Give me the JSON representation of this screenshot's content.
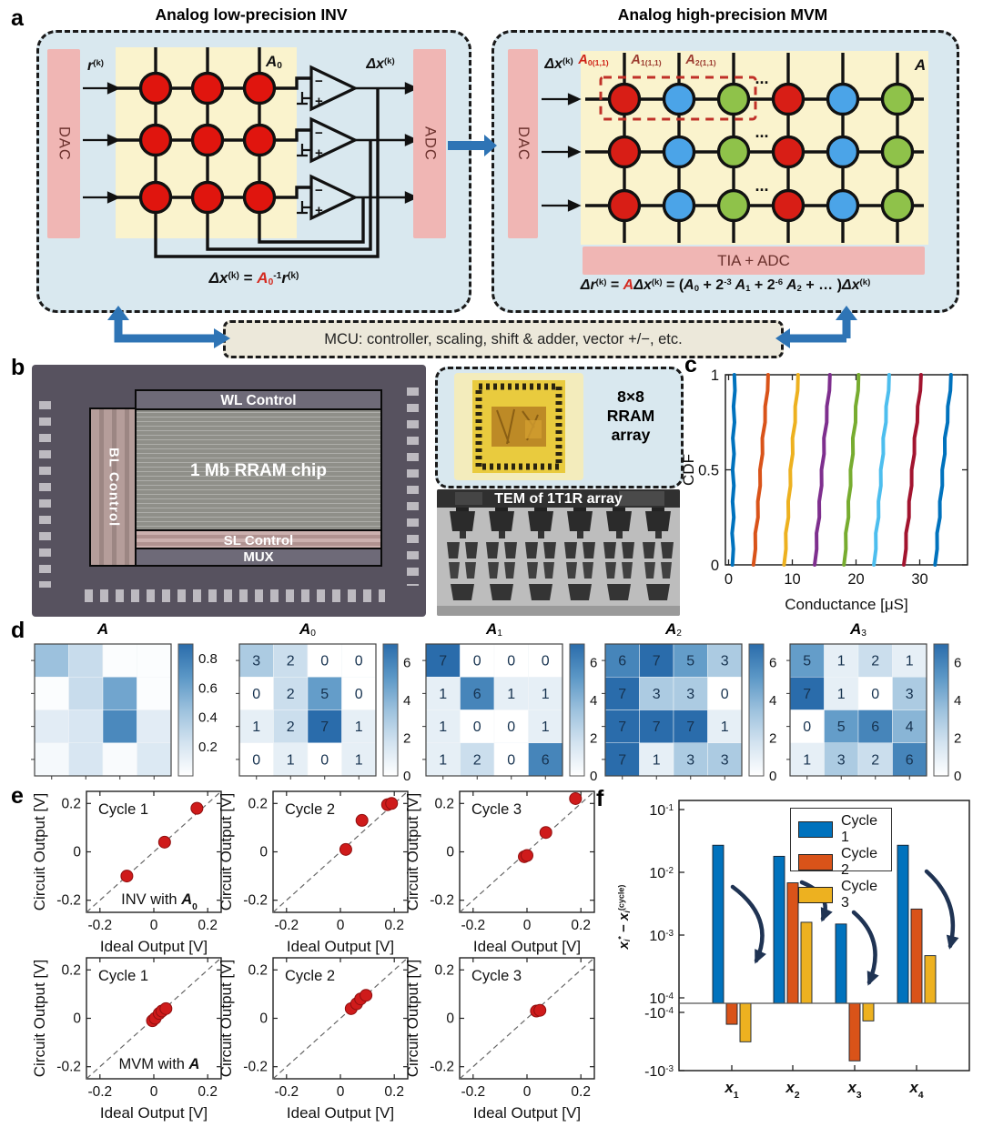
{
  "panel_labels": {
    "a": "a",
    "b": "b",
    "c": "c",
    "d": "d",
    "e": "e",
    "f": "f"
  },
  "colors": {
    "panel_bg": "#d9e8ef",
    "crossbar_bg": "#faf3cd",
    "pink_bar": "#f0b6b4",
    "maroon_text": "#6b312d",
    "mcu_bg": "#ece8da",
    "arrow_blue": "#2e74b5",
    "cell_red": "#e0150e",
    "cell_red2": "#d81e16",
    "cell_blue": "#4ba4e8",
    "cell_green": "#8fc24a",
    "red_accent": "#d42a20",
    "navy_arrow": "#1f3353"
  },
  "panel_a": {
    "left_title": "Analog low-precision INV",
    "right_title": "Analog high-precision MVM",
    "dac": "DAC",
    "adc": "ADC",
    "tia_adc": "TIA + ADC",
    "mcu": "MCU: controller, scaling, shift & adder, vector +/−, etc.",
    "op_minus": "−",
    "op_plus": "+",
    "dots": "...",
    "label_r": [
      {
        "t": "r",
        "s": "bi"
      },
      {
        "t": "(k)",
        "s": "sup"
      }
    ],
    "label_A0": [
      {
        "t": "A",
        "s": "bi"
      },
      {
        "t": "0",
        "s": "sub"
      }
    ],
    "label_dx_left": [
      {
        "t": "Δx",
        "s": "bi"
      },
      {
        "t": "(k)",
        "s": "sup"
      }
    ],
    "label_dx_right": [
      {
        "t": "Δx",
        "s": "bi"
      },
      {
        "t": "(k)",
        "s": "sup"
      }
    ],
    "label_A": [
      {
        "t": "A",
        "s": "bi"
      }
    ],
    "label_A0_11": [
      {
        "t": "A",
        "s": "bi",
        "c": "#cf2318"
      },
      {
        "t": "0(1,1)",
        "s": "subb",
        "c": "#cf2318"
      }
    ],
    "label_A1_11": [
      {
        "t": "A",
        "s": "bi",
        "c": "#9c3c30"
      },
      {
        "t": "1(1,1)",
        "s": "subb",
        "c": "#9c3c30"
      }
    ],
    "label_A2_11": [
      {
        "t": "A",
        "s": "bi",
        "c": "#9c3c30"
      },
      {
        "t": "2(1,1)",
        "s": "subb",
        "c": "#9c3c30"
      }
    ],
    "eq_left": [
      {
        "t": "Δx",
        "s": "bi"
      },
      {
        "t": "(k)",
        "s": "sup"
      },
      {
        "t": " = ",
        "s": "b"
      },
      {
        "t": "A",
        "s": "bi",
        "c": "#d42a20"
      },
      {
        "t": "0",
        "s": "subb",
        "c": "#d42a20"
      },
      {
        "t": "-1",
        "s": "supb"
      },
      {
        "t": "r",
        "s": "bi"
      },
      {
        "t": "(k)",
        "s": "sup"
      }
    ],
    "eq_right": [
      {
        "t": "Δr",
        "s": "bi"
      },
      {
        "t": "(k)",
        "s": "sup"
      },
      {
        "t": " = ",
        "s": "b"
      },
      {
        "t": "A",
        "s": "bi",
        "c": "#d42a20"
      },
      {
        "t": "Δx",
        "s": "bi"
      },
      {
        "t": "(k)",
        "s": "sup"
      },
      {
        "t": " = (",
        "s": "b"
      },
      {
        "t": "A",
        "s": "bi"
      },
      {
        "t": "0",
        "s": "subb"
      },
      {
        "t": " + 2",
        "s": "b"
      },
      {
        "t": "-3",
        "s": "supb"
      },
      {
        "t": " A",
        "s": "bi"
      },
      {
        "t": "1",
        "s": "subb"
      },
      {
        "t": " + 2",
        "s": "b"
      },
      {
        "t": "-6",
        "s": "supb"
      },
      {
        "t": " A",
        "s": "bi"
      },
      {
        "t": "2",
        "s": "subb"
      },
      {
        "t": " + … )",
        "s": "b"
      },
      {
        "t": "Δx",
        "s": "bi"
      },
      {
        "t": "(k)",
        "s": "sup"
      }
    ]
  },
  "panel_b": {
    "wl": "WL Control",
    "bl": "BL Control",
    "chip": "1 Mb RRAM chip",
    "sl": "SL Control",
    "mux": "MUX",
    "array_caption": "8×8\nRRAM\narray",
    "tem_caption": "TEM of 1T1R array"
  },
  "chart_data": {
    "cdf": {
      "type": "line",
      "xlabel": "Conductance [μS]",
      "ylabel": "CDF",
      "xticks": [
        0,
        10,
        20,
        30
      ],
      "yticks": [
        0,
        0.5,
        1
      ],
      "xlim": [
        -0.5,
        37.5
      ],
      "ylim": [
        0,
        1
      ],
      "series": [
        {
          "x_cdf0": 0.6,
          "x_cdf1": 0.9,
          "color": "#0072BD"
        },
        {
          "x_cdf0": 3.9,
          "x_cdf1": 6.2,
          "color": "#D95319"
        },
        {
          "x_cdf0": 8.7,
          "x_cdf1": 10.9,
          "color": "#EDB120"
        },
        {
          "x_cdf0": 13.5,
          "x_cdf1": 15.9,
          "color": "#7E2F8E"
        },
        {
          "x_cdf0": 18.1,
          "x_cdf1": 20.4,
          "color": "#77AC30"
        },
        {
          "x_cdf0": 22.8,
          "x_cdf1": 25.2,
          "color": "#4DBEEE"
        },
        {
          "x_cdf0": 27.5,
          "x_cdf1": 30.2,
          "color": "#A2142F"
        },
        {
          "x_cdf0": 32.4,
          "x_cdf1": 34.9,
          "color": "#0072BD"
        }
      ]
    },
    "heatmaps": {
      "type": "heatmap",
      "colormap_stops": [
        "#ffffff",
        "#d3e3f0",
        "#9cc1dd",
        "#5b97c6",
        "#2a6cab"
      ],
      "items": [
        {
          "title": [
            {
              "t": "A",
              "s": "bi"
            }
          ],
          "vmin": 0,
          "vmax": 0.9,
          "ticks": [
            0.2,
            0.4,
            0.6,
            0.8
          ],
          "show_values": false,
          "values": [
            [
              0.45,
              0.27,
              0.02,
              0.02
            ],
            [
              0.02,
              0.27,
              0.6,
              0.02
            ],
            [
              0.15,
              0.2,
              0.75,
              0.15
            ],
            [
              0.05,
              0.2,
              0.03,
              0.18
            ]
          ]
        },
        {
          "title": [
            {
              "t": "A",
              "s": "bi"
            },
            {
              "t": "0",
              "s": "sub"
            }
          ],
          "vmin": 0,
          "vmax": 7,
          "ticks": [
            0,
            2,
            4,
            6
          ],
          "show_values": true,
          "values": [
            [
              3,
              2,
              0,
              0
            ],
            [
              0,
              2,
              5,
              0
            ],
            [
              1,
              2,
              7,
              1
            ],
            [
              0,
              1,
              0,
              1
            ]
          ]
        },
        {
          "title": [
            {
              "t": "A",
              "s": "bi"
            },
            {
              "t": "1",
              "s": "sub"
            }
          ],
          "vmin": 0,
          "vmax": 7,
          "ticks": [
            0,
            2,
            4,
            6
          ],
          "show_values": true,
          "values": [
            [
              7,
              0,
              0,
              0
            ],
            [
              1,
              6,
              1,
              1
            ],
            [
              1,
              0,
              0,
              1
            ],
            [
              1,
              2,
              0,
              6
            ]
          ]
        },
        {
          "title": [
            {
              "t": "A",
              "s": "bi"
            },
            {
              "t": "2",
              "s": "sub"
            }
          ],
          "vmin": 0,
          "vmax": 7,
          "ticks": [
            0,
            2,
            4,
            6
          ],
          "show_values": true,
          "values": [
            [
              6,
              7,
              5,
              3
            ],
            [
              7,
              3,
              3,
              0
            ],
            [
              7,
              7,
              7,
              1
            ],
            [
              7,
              1,
              3,
              3
            ]
          ]
        },
        {
          "title": [
            {
              "t": "A",
              "s": "bi"
            },
            {
              "t": "3",
              "s": "sub"
            }
          ],
          "vmin": 0,
          "vmax": 7,
          "ticks": [
            0,
            2,
            4,
            6
          ],
          "show_values": true,
          "values": [
            [
              5,
              1,
              2,
              1
            ],
            [
              7,
              1,
              0,
              3
            ],
            [
              0,
              5,
              6,
              4
            ],
            [
              1,
              3,
              2,
              6
            ]
          ]
        }
      ]
    },
    "scatter": {
      "type": "scatter",
      "xlabel": "Ideal Output [V]",
      "ylabel": "Circuit Output [V]",
      "ticks": [
        -0.2,
        0,
        0.2
      ],
      "lim": [
        -0.25,
        0.25
      ],
      "point_color": "#cf1b1b",
      "point_edge": "#8f0f0f",
      "note_inv": [
        {
          "t": "INV with "
        },
        {
          "t": "A",
          "s": "bi"
        },
        {
          "t": "0",
          "s": "subb"
        }
      ],
      "note_mvm": [
        {
          "t": "MVM with "
        },
        {
          "t": "A",
          "s": "bi"
        }
      ],
      "plots": [
        {
          "cycle": "Cycle 1",
          "points": [
            [
              -0.1,
              -0.1
            ],
            [
              0.04,
              0.04
            ],
            [
              0.16,
              0.18
            ]
          ]
        },
        {
          "cycle": "Cycle 2",
          "points": [
            [
              0.02,
              0.01
            ],
            [
              0.08,
              0.13
            ],
            [
              0.175,
              0.195
            ],
            [
              0.19,
              0.2
            ]
          ]
        },
        {
          "cycle": "Cycle 3",
          "points": [
            [
              -0.01,
              -0.02
            ],
            [
              0.0,
              -0.015
            ],
            [
              0.07,
              0.08
            ],
            [
              0.18,
              0.22
            ]
          ]
        },
        {
          "cycle": "Cycle 1",
          "points": [
            [
              -0.005,
              -0.01
            ],
            [
              0.005,
              0.0
            ],
            [
              0.02,
              0.02
            ],
            [
              0.03,
              0.03
            ],
            [
              0.045,
              0.04
            ]
          ]
        },
        {
          "cycle": "Cycle 2",
          "points": [
            [
              0.04,
              0.04
            ],
            [
              0.06,
              0.06
            ],
            [
              0.075,
              0.08
            ],
            [
              0.095,
              0.095
            ]
          ]
        },
        {
          "cycle": "Cycle 3",
          "points": [
            [
              0.035,
              0.03
            ],
            [
              0.048,
              0.033
            ]
          ]
        }
      ]
    },
    "bars": {
      "type": "bar",
      "scale": "symlog",
      "ylabel": [
        {
          "t": "x",
          "s": "bi"
        },
        {
          "t": "i",
          "s": "subi"
        },
        {
          "t": "*",
          "s": "supb"
        },
        {
          "t": " − ",
          "s": "b"
        },
        {
          "t": "x",
          "s": "bi"
        },
        {
          "t": "i",
          "s": "subi"
        },
        {
          "t": "(cycle)",
          "s": "sup"
        }
      ],
      "categories": [
        [
          {
            "t": "x",
            "s": "bi"
          },
          {
            "t": "1",
            "s": "subb"
          }
        ],
        [
          {
            "t": "x",
            "s": "bi"
          },
          {
            "t": "2",
            "s": "subb"
          }
        ],
        [
          {
            "t": "x",
            "s": "bi"
          },
          {
            "t": "3",
            "s": "subb"
          }
        ],
        [
          {
            "t": "x",
            "s": "bi"
          },
          {
            "t": "4",
            "s": "subb"
          }
        ]
      ],
      "pos_tick_exps": [
        -1,
        -2,
        -3,
        -4
      ],
      "neg_tick_exps": [
        -4,
        -3
      ],
      "series": [
        {
          "name": "Cycle 1",
          "color": "#0072BD",
          "values": [
            0.027,
            0.018,
            0.0015,
            0.027
          ]
        },
        {
          "name": "Cycle 2",
          "color": "#D95319",
          "values": [
            -0.00016,
            0.0068,
            -0.00068,
            0.0026
          ]
        },
        {
          "name": "Cycle 3",
          "color": "#EDB120",
          "values": [
            -0.00032,
            0.0016,
            -0.00014,
            0.00047
          ]
        }
      ]
    }
  }
}
